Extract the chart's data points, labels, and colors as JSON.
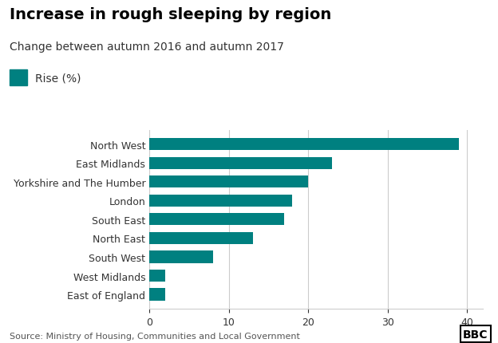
{
  "title": "Increase in rough sleeping by region",
  "subtitle": "Change between autumn 2016 and autumn 2017",
  "legend_label": "Rise (%)",
  "source": "Source: Ministry of Housing, Communities and Local Government",
  "categories": [
    "East of England",
    "West Midlands",
    "South West",
    "North East",
    "South East",
    "London",
    "Yorkshire and The Humber",
    "East Midlands",
    "North West"
  ],
  "values": [
    2,
    2,
    8,
    13,
    17,
    18,
    20,
    23,
    39
  ],
  "bar_color": "#008080",
  "background_color": "#ffffff",
  "xlim": [
    0,
    42
  ],
  "xticks": [
    0,
    10,
    20,
    30,
    40
  ],
  "title_fontsize": 14,
  "subtitle_fontsize": 10,
  "legend_fontsize": 10,
  "tick_fontsize": 9,
  "source_fontsize": 8,
  "bar_height": 0.65
}
